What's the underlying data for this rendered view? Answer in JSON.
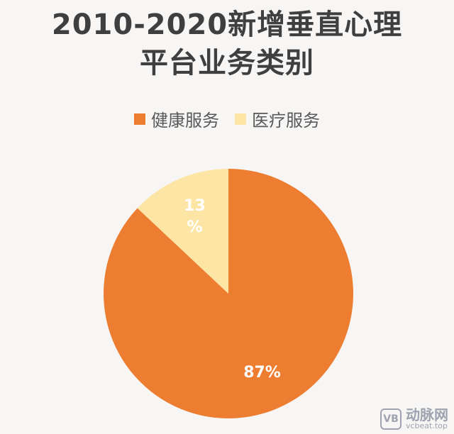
{
  "chart_data": {
    "type": "pie",
    "title_line1": "2010-2020新增垂直心理",
    "title_line2": "平台业务类别",
    "categories": [
      "健康服务",
      "医疗服务"
    ],
    "values": [
      87,
      13
    ],
    "data_labels": [
      "87%",
      "13\n%"
    ],
    "colors": [
      "#ed7d31",
      "#fde6a5"
    ],
    "legend_position": "top"
  },
  "watermark": {
    "logo": "VB",
    "cn": "动脉网",
    "url": "vcbeat.top"
  }
}
